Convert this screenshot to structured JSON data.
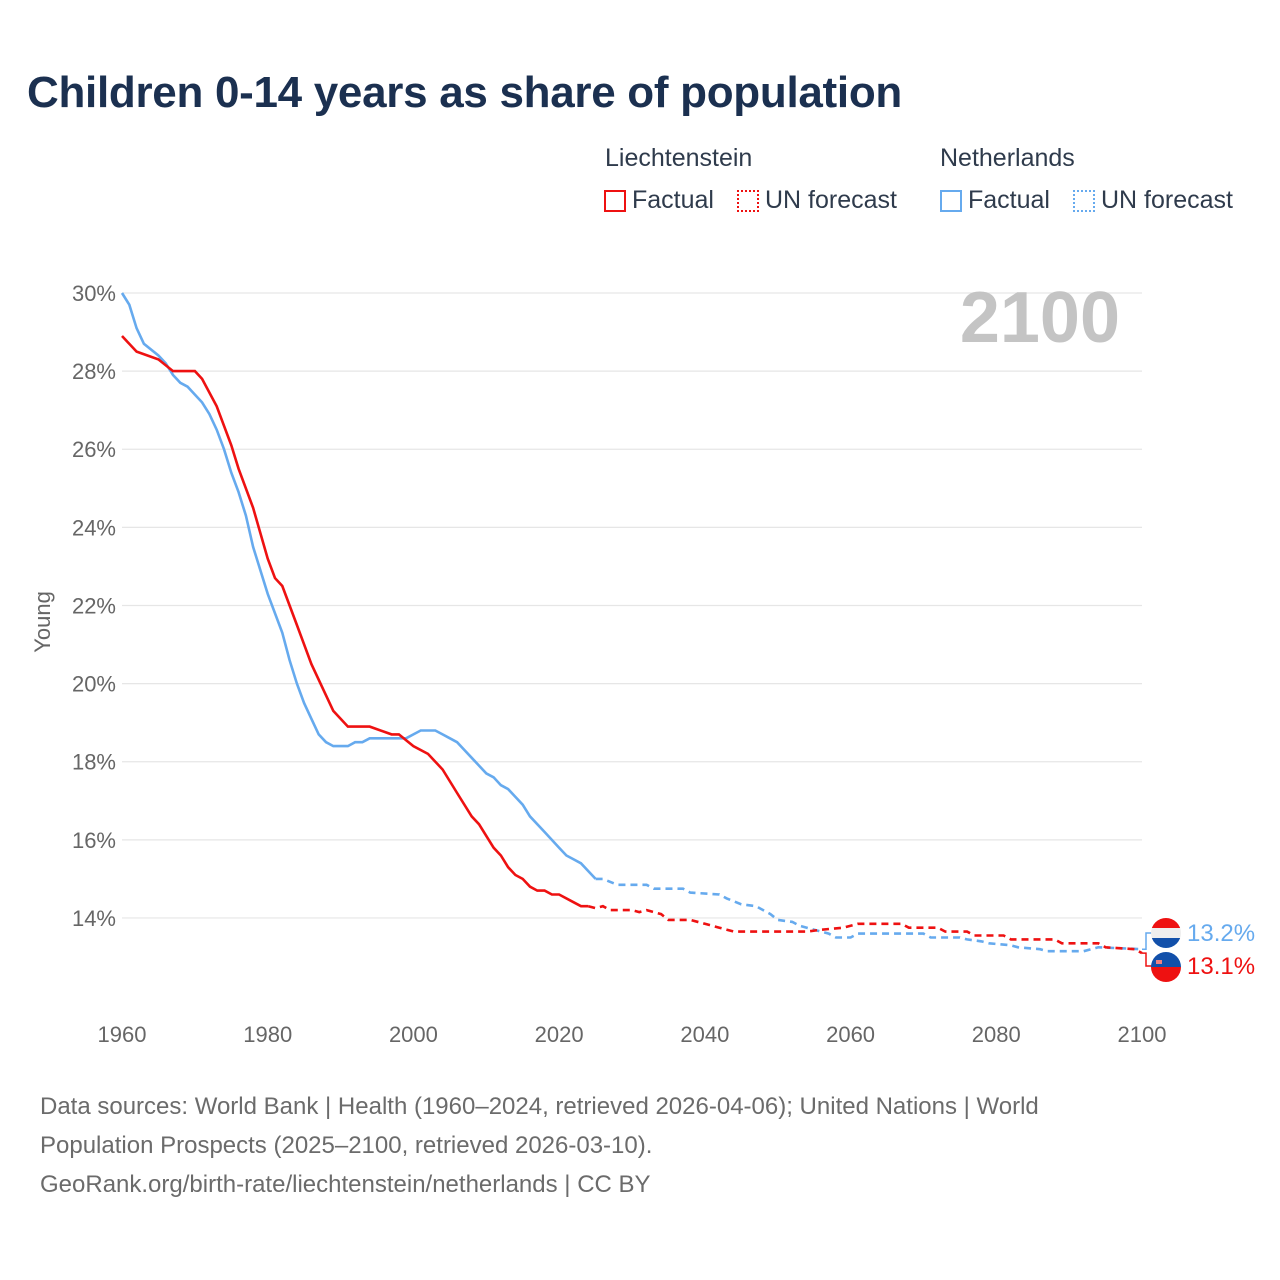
{
  "title": "Children 0-14 years as share of population",
  "legend": {
    "groups": [
      {
        "country": "Liechtenstein",
        "color": "#ee1111",
        "factual": "Factual",
        "forecast": "UN forecast"
      },
      {
        "country": "Netherlands",
        "color": "#66aaee",
        "factual": "Factual",
        "forecast": "UN forecast"
      }
    ]
  },
  "year_label": "2100",
  "footer": {
    "line1": "Data sources: World Bank | Health (1960–2024, retrieved 2026-04-06); United Nations | World",
    "line2": "Population Prospects (2025–2100, retrieved 2026-03-10).",
    "line3": "GeoRank.org/birth-rate/liechtenstein/netherlands | CC BY"
  },
  "chart_data": {
    "type": "line",
    "title": "Children 0-14 years as share of population",
    "xlabel": "",
    "ylabel": "Young",
    "xlim": [
      1960,
      2100
    ],
    "ylim": [
      12.3,
      30
    ],
    "xticks": [
      1960,
      1980,
      2000,
      2020,
      2040,
      2060,
      2080,
      2100
    ],
    "xtick_labels": [
      "1960",
      "1980",
      "2000",
      "2020",
      "2040",
      "2060",
      "2080",
      "2100"
    ],
    "yticks": [
      14,
      16,
      18,
      20,
      22,
      24,
      26,
      28,
      30
    ],
    "ytick_labels": [
      "14%",
      "16%",
      "18%",
      "20%",
      "22%",
      "24%",
      "26%",
      "28%",
      "30%"
    ],
    "grid": true,
    "legend_position": "top-right",
    "series": [
      {
        "name": "Liechtenstein",
        "color": "#ee1111",
        "end_label": "13.1%",
        "factual": {
          "x": [
            1960,
            1962,
            1965,
            1967,
            1970,
            1971,
            1973,
            1975,
            1976,
            1978,
            1980,
            1981,
            1982,
            1984,
            1986,
            1988,
            1989,
            1991,
            1994,
            1997,
            1998,
            2000,
            2002,
            2004,
            2006,
            2008,
            2009,
            2011,
            2012,
            2013,
            2014,
            2015,
            2016,
            2017,
            2018,
            2019,
            2020,
            2022,
            2023,
            2024
          ],
          "y": [
            28.9,
            28.5,
            28.3,
            28.0,
            28.0,
            27.8,
            27.1,
            26.1,
            25.5,
            24.5,
            23.2,
            22.7,
            22.5,
            21.5,
            20.5,
            19.7,
            19.3,
            18.9,
            18.9,
            18.7,
            18.7,
            18.4,
            18.2,
            17.8,
            17.2,
            16.6,
            16.4,
            15.8,
            15.6,
            15.3,
            15.1,
            15.0,
            14.8,
            14.7,
            14.7,
            14.6,
            14.6,
            14.4,
            14.3,
            14.3
          ]
        },
        "forecast": {
          "x": [
            2024,
            2025,
            2026,
            2027,
            2030,
            2031,
            2032,
            2034,
            2035,
            2038,
            2040,
            2042,
            2044,
            2054,
            2056,
            2059,
            2061,
            2067,
            2068,
            2072,
            2073,
            2076,
            2077,
            2081,
            2082,
            2088,
            2089,
            2094,
            2095,
            2099,
            2100
          ],
          "y": [
            14.3,
            14.25,
            14.3,
            14.2,
            14.2,
            14.15,
            14.2,
            14.1,
            13.95,
            13.95,
            13.85,
            13.75,
            13.65,
            13.65,
            13.7,
            13.75,
            13.85,
            13.85,
            13.75,
            13.75,
            13.65,
            13.65,
            13.55,
            13.55,
            13.45,
            13.45,
            13.35,
            13.35,
            13.25,
            13.2,
            13.1
          ]
        }
      },
      {
        "name": "Netherlands",
        "color": "#66aaee",
        "end_label": "13.2%",
        "factual": {
          "x": [
            1960,
            1961,
            1962,
            1963,
            1965,
            1966,
            1967,
            1968,
            1969,
            1970,
            1971,
            1972,
            1973,
            1974,
            1975,
            1976,
            1977,
            1978,
            1980,
            1982,
            1983,
            1984,
            1985,
            1986,
            1987,
            1988,
            1989,
            1991,
            1992,
            1993,
            1994,
            1999,
            2000,
            2001,
            2003,
            2004,
            2005,
            2006,
            2007,
            2008,
            2009,
            2010,
            2011,
            2012,
            2013,
            2014,
            2015,
            2016,
            2018,
            2020,
            2021,
            2022,
            2023,
            2024,
            2025
          ],
          "y": [
            30.0,
            29.7,
            29.1,
            28.7,
            28.4,
            28.2,
            27.9,
            27.7,
            27.6,
            27.4,
            27.2,
            26.9,
            26.5,
            26.0,
            25.4,
            24.9,
            24.3,
            23.5,
            22.3,
            21.3,
            20.6,
            20.0,
            19.5,
            19.1,
            18.7,
            18.5,
            18.4,
            18.4,
            18.5,
            18.5,
            18.6,
            18.6,
            18.7,
            18.8,
            18.8,
            18.7,
            18.6,
            18.5,
            18.3,
            18.1,
            17.9,
            17.7,
            17.6,
            17.4,
            17.3,
            17.1,
            16.9,
            16.6,
            16.2,
            15.8,
            15.6,
            15.5,
            15.4,
            15.2,
            15.0
          ]
        },
        "forecast": {
          "x": [
            2025,
            2026,
            2028,
            2032,
            2033,
            2037,
            2038,
            2042,
            2043,
            2045,
            2047,
            2049,
            2050,
            2052,
            2053,
            2055,
            2057,
            2058,
            2060,
            2061,
            2070,
            2071,
            2075,
            2076,
            2078,
            2079,
            2082,
            2083,
            2086,
            2087,
            2092,
            2093,
            2094,
            2100
          ],
          "y": [
            15.0,
            15.0,
            14.85,
            14.85,
            14.75,
            14.75,
            14.65,
            14.6,
            14.5,
            14.35,
            14.3,
            14.1,
            13.95,
            13.9,
            13.8,
            13.7,
            13.6,
            13.5,
            13.5,
            13.6,
            13.6,
            13.5,
            13.5,
            13.45,
            13.4,
            13.35,
            13.3,
            13.25,
            13.2,
            13.15,
            13.15,
            13.2,
            13.25,
            13.2
          ]
        }
      }
    ]
  }
}
